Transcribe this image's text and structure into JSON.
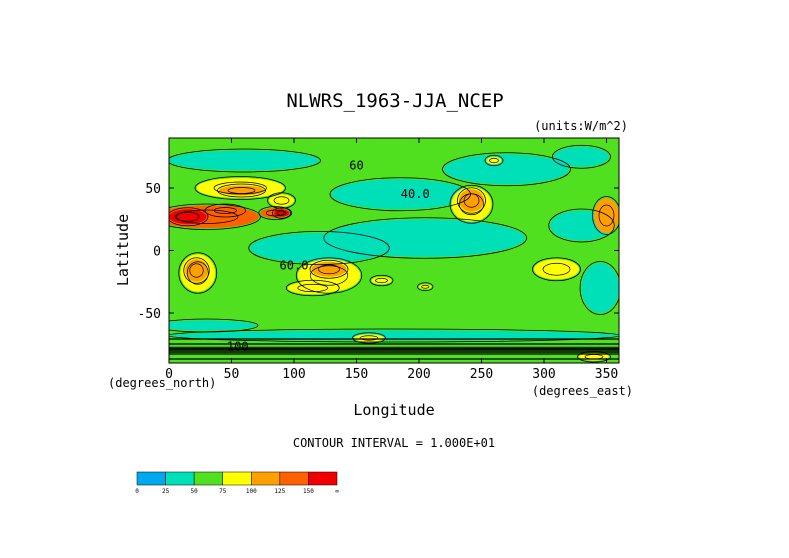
{
  "chart_data": {
    "type": "heatmap",
    "title": "NLWRS_1963-JJA_NCEP",
    "units_label": "(units:W/m^2)",
    "xlabel": "Longitude",
    "ylabel": "Latitude",
    "x_sub_label": "(degrees_east)",
    "y_sub_label": "(degrees_north)",
    "xlim": [
      0,
      360
    ],
    "ylim": [
      -90,
      90
    ],
    "x_ticks": [
      0,
      50,
      100,
      150,
      200,
      250,
      300,
      350
    ],
    "y_ticks": [
      50,
      0,
      -50
    ],
    "contour_interval_text": "CONTOUR INTERVAL = 1.000E+01",
    "colorbar": {
      "levels": [
        "0",
        "25",
        "50",
        "75",
        "100",
        "125",
        "150",
        "∞"
      ],
      "colors": [
        "#00a8f0",
        "#00e0b8",
        "#50e020",
        "#ffff00",
        "#ffa000",
        "#ff6000",
        "#f00000"
      ]
    },
    "contour_labels": [
      {
        "lon": 100,
        "lat": -15,
        "text": "60.0"
      },
      {
        "lon": 197,
        "lat": 42,
        "text": "40.0"
      },
      {
        "lon": 55,
        "lat": -80,
        "text": "100"
      },
      {
        "lon": 150,
        "lat": 65,
        "text": "60"
      }
    ],
    "regions": [
      {
        "level": 1,
        "lon": 205,
        "lat": 10,
        "rlon": 80,
        "rlat": 15
      },
      {
        "level": 1,
        "lon": 120,
        "lat": 2,
        "rlon": 55,
        "rlat": 12
      },
      {
        "level": 1,
        "lon": 185,
        "lat": 45,
        "rlon": 55,
        "rlat": 12
      },
      {
        "level": 1,
        "lon": 60,
        "lat": 72,
        "rlon": 60,
        "rlat": 8
      },
      {
        "level": 1,
        "lon": 270,
        "lat": 65,
        "rlon": 50,
        "rlat": 12
      },
      {
        "level": 1,
        "lon": 330,
        "lat": 75,
        "rlon": 22,
        "rlat": 8
      },
      {
        "level": 1,
        "lon": 330,
        "lat": 20,
        "rlon": 25,
        "rlat": 12
      },
      {
        "level": 1,
        "lon": 345,
        "lat": -30,
        "rlon": 15,
        "rlat": 20
      },
      {
        "level": 1,
        "lon": 180,
        "lat": -68,
        "rlon": 180,
        "rlat": 4
      },
      {
        "level": 1,
        "lon": 30,
        "lat": -60,
        "rlon": 40,
        "rlat": 4
      },
      {
        "level": 3,
        "lon": 57,
        "lat": 50,
        "rlon": 35,
        "rlat": 8
      },
      {
        "level": 3,
        "lon": 90,
        "lat": 40,
        "rlon": 10,
        "rlat": 5
      },
      {
        "level": 3,
        "lon": 128,
        "lat": -20,
        "rlon": 25,
        "rlat": 13
      },
      {
        "level": 3,
        "lon": 115,
        "lat": -30,
        "rlon": 20,
        "rlat": 5
      },
      {
        "level": 3,
        "lon": 242,
        "lat": 37,
        "rlon": 16,
        "rlat": 14
      },
      {
        "level": 3,
        "lon": 23,
        "lat": -18,
        "rlon": 14,
        "rlat": 15
      },
      {
        "level": 3,
        "lon": 170,
        "lat": -24,
        "rlon": 8,
        "rlat": 3
      },
      {
        "level": 3,
        "lon": 205,
        "lat": -29,
        "rlon": 5,
        "rlat": 2
      },
      {
        "level": 3,
        "lon": 310,
        "lat": -15,
        "rlon": 18,
        "rlat": 8
      },
      {
        "level": 3,
        "lon": 260,
        "lat": 72,
        "rlon": 6,
        "rlat": 3
      },
      {
        "level": 3,
        "lon": 160,
        "lat": -70,
        "rlon": 12,
        "rlat": 3
      },
      {
        "level": 3,
        "lon": 340,
        "lat": -85,
        "rlon": 12,
        "rlat": 3
      },
      {
        "level": 4,
        "lon": 128,
        "lat": -15,
        "rlon": 14,
        "rlat": 6
      },
      {
        "level": 4,
        "lon": 242,
        "lat": 40,
        "rlon": 10,
        "rlat": 9
      },
      {
        "level": 4,
        "lon": 22,
        "lat": -16,
        "rlon": 9,
        "rlat": 9
      },
      {
        "level": 4,
        "lon": 58,
        "lat": 48,
        "rlon": 18,
        "rlat": 4
      },
      {
        "level": 4,
        "lon": 350,
        "lat": 28,
        "rlon": 10,
        "rlat": 14
      },
      {
        "level": 5,
        "lon": 30,
        "lat": 27,
        "rlon": 42,
        "rlat": 9
      },
      {
        "level": 5,
        "lon": 45,
        "lat": 32,
        "rlon": 15,
        "rlat": 4
      },
      {
        "level": 5,
        "lon": 85,
        "lat": 30,
        "rlon": 12,
        "rlat": 4
      },
      {
        "level": 6,
        "lon": 15,
        "lat": 27,
        "rlon": 15,
        "rlat": 6
      },
      {
        "level": 6,
        "lon": 90,
        "lat": 30,
        "rlon": 6,
        "rlat": 3
      }
    ]
  }
}
